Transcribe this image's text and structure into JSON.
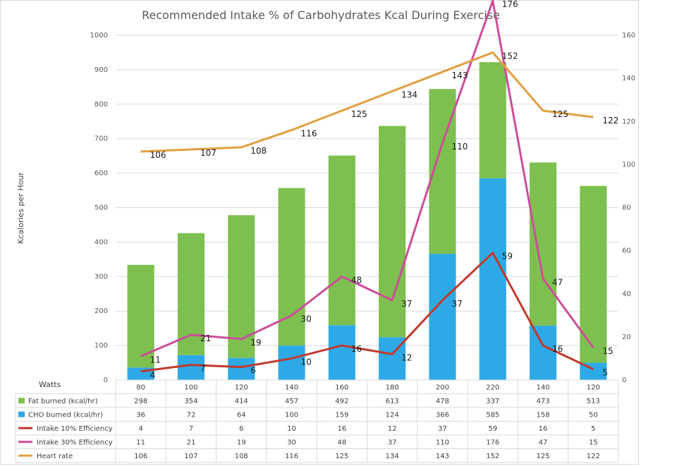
{
  "chart_data": {
    "type": "bar",
    "subtype": "stacked-bar-with-lines",
    "title": "Recommended Intake % of Carbohydrates Kcal During Exercise",
    "ylabel": "Kcalories per Hour",
    "ylim": [
      0,
      1000
    ],
    "yticks": [
      0,
      100,
      200,
      300,
      400,
      500,
      600,
      700,
      800,
      900,
      1000
    ],
    "y2lim": [
      0,
      160
    ],
    "y2ticks": [
      0,
      20,
      40,
      60,
      80,
      100,
      120,
      140,
      160
    ],
    "table_header": "Watts",
    "categories": [
      "80",
      "100",
      "120",
      "140",
      "160",
      "180",
      "200",
      "220",
      "140",
      "120"
    ],
    "series": [
      {
        "name": "Fat burned (kcal/hr)",
        "kind": "bar",
        "color": "#7dc04f",
        "values": [
          298,
          354,
          414,
          457,
          492,
          613,
          478,
          337,
          473,
          513
        ],
        "table": [
          "298",
          "354",
          "414",
          "457",
          "492",
          "613",
          "478",
          "337",
          "473",
          "513"
        ]
      },
      {
        "name": "CHO burned (kcal/hr)",
        "kind": "bar",
        "color": "#2ea9e8",
        "values": [
          36,
          72,
          64,
          100,
          159,
          124,
          366,
          585,
          158,
          50
        ],
        "table": [
          "36",
          "72",
          "64",
          "100",
          "159",
          "124",
          "366",
          "585",
          "158",
          "50"
        ]
      },
      {
        "name": "Intake 10% Efficiency",
        "kind": "line",
        "axis": "secondary",
        "color": "#c0392b",
        "values": [
          4,
          7,
          6,
          10,
          16,
          12,
          37,
          59,
          16,
          5
        ],
        "labels": [
          "4",
          "7",
          "6",
          "10",
          "16",
          "12",
          "37",
          "59",
          "16",
          "5"
        ],
        "table": [
          "4",
          "7",
          "6",
          "10",
          "16",
          "12",
          "37",
          "59",
          "16",
          "5"
        ]
      },
      {
        "name": "Intake 30% Efficiency",
        "kind": "line",
        "axis": "secondary",
        "color": "#cc4d99",
        "values": [
          11,
          21,
          19,
          30,
          48,
          37,
          110,
          176,
          47,
          15
        ],
        "labels": [
          "11",
          "21",
          "19",
          "30",
          "48",
          "37",
          "110",
          "176",
          "47",
          "15"
        ],
        "table": [
          "11",
          "21",
          "19",
          "30",
          "48",
          "37",
          "110",
          "176",
          "47",
          "15"
        ]
      },
      {
        "name": "Heart rate",
        "kind": "line",
        "axis": "secondary",
        "color": "#e0a040",
        "values": [
          106,
          107,
          108,
          116,
          125,
          134,
          143,
          152,
          125,
          122
        ],
        "labels": [
          "106",
          "107",
          "108",
          "116",
          "125",
          "134",
          "143",
          "152",
          "125",
          "122"
        ],
        "table": [
          "106",
          "107",
          "108",
          "116",
          "125",
          "134",
          "143",
          "152",
          "125",
          "122"
        ]
      }
    ]
  }
}
